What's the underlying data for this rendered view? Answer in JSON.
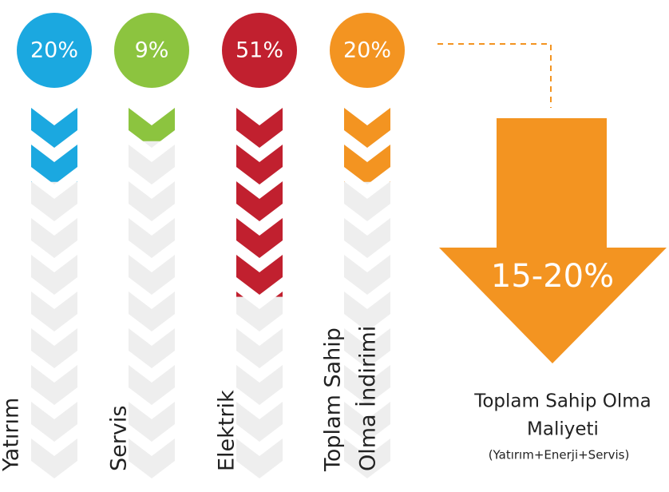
{
  "columns": [
    {
      "label_lines": [
        "Yatırım"
      ],
      "value": 20,
      "value_label": "20%",
      "color": "#1ba8e0"
    },
    {
      "label_lines": [
        "Servis"
      ],
      "value": 9,
      "value_label": "9%",
      "color": "#8cc43f"
    },
    {
      "label_lines": [
        "Elektrik"
      ],
      "value": 51,
      "value_label": "51%",
      "color": "#c1202f"
    },
    {
      "label_lines": [
        "Toplam Sahip",
        "Olma İndirimi"
      ],
      "value": 20,
      "value_label": "20%",
      "color": "#f39421"
    }
  ],
  "total": {
    "label": "15-20%",
    "title_lines": [
      "Toplam Sahip Olma",
      "Maliyeti"
    ],
    "subtitle": "(Yatırım+Enerji+Servis)",
    "color": "#f39421"
  }
}
